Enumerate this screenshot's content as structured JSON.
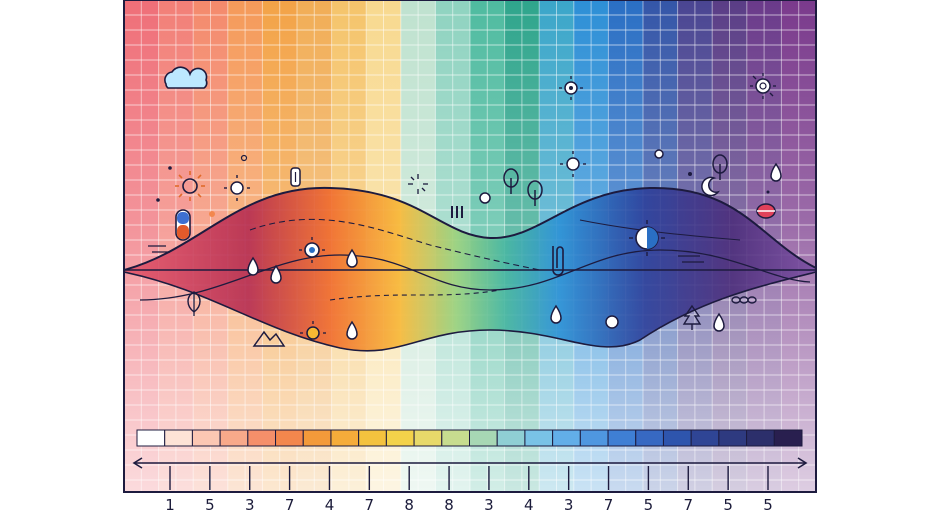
{
  "palette": {
    "stripes": [
      "#ef6f78",
      "#f27f77",
      "#f48a6c",
      "#f59a5a",
      "#f3a347",
      "#f1ad56",
      "#f5c46b",
      "#f8d98f",
      "#bfe2cf",
      "#8fd3c0",
      "#4fbba0",
      "#2fa58c",
      "#3ba6c9",
      "#2d8fd6",
      "#2a6fc4",
      "#3456a8",
      "#4a4592",
      "#5a3d86",
      "#6a3a8a",
      "#7a3a8c"
    ],
    "outline": "#1d1b3f",
    "legend_swatches": [
      "#ffffff",
      "#fde3d6",
      "#fbc7b3",
      "#f8a98a",
      "#f58f6a",
      "#f3874d",
      "#f39a3a",
      "#f5ac3a",
      "#f4c23e",
      "#f3d24a",
      "#e7d96a",
      "#c7dc8f",
      "#a7d7b4",
      "#8fcfd4",
      "#79c2e6",
      "#62aee8",
      "#4f97e0",
      "#3f7fd4",
      "#3769c2",
      "#2e55ad",
      "#2f4595",
      "#2e3a80",
      "#2c2f6b",
      "#291f4f"
    ]
  },
  "icons": [
    "cloud-icon",
    "sun-icon",
    "battery-icon",
    "tree-icon",
    "droplet-icon",
    "moon-icon",
    "mountain-icon",
    "leaf-icon",
    "paperclip-icon",
    "bar-chart-icon"
  ],
  "scale": {
    "tick_labels": [
      "1",
      "5",
      "3",
      "7",
      "4",
      "7",
      "8",
      "8",
      "3",
      "4",
      "3",
      "7",
      "5",
      "7",
      "5",
      "5"
    ]
  }
}
